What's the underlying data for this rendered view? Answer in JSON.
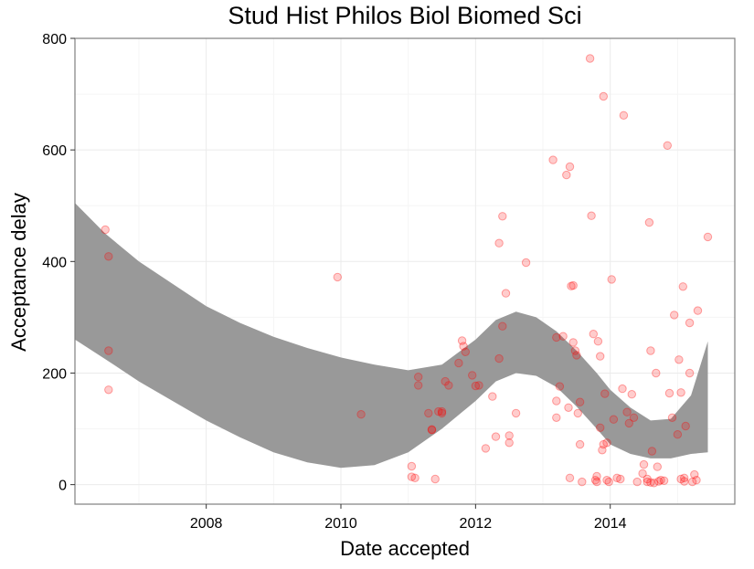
{
  "chart_data": {
    "type": "scatter",
    "title": "Stud Hist Philos Biol Biomed Sci",
    "xlabel": "Date accepted",
    "ylabel": "Acceptance delay",
    "xlim": [
      2006.05,
      2015.85
    ],
    "ylim": [
      -35,
      800
    ],
    "x_ticks": [
      2008,
      2010,
      2012,
      2014
    ],
    "x_tick_labels": [
      "2008",
      "2010",
      "2012",
      "2014"
    ],
    "y_ticks": [
      0,
      200,
      400,
      600,
      800
    ],
    "y_tick_labels": [
      "0",
      "200",
      "400",
      "600",
      "800"
    ],
    "grid": true,
    "point_color": "#ff0000",
    "band_color": "#999999",
    "points": [
      [
        2006.5,
        457
      ],
      [
        2006.55,
        409
      ],
      [
        2006.55,
        240
      ],
      [
        2006.55,
        170
      ],
      [
        2009.95,
        372
      ],
      [
        2010.3,
        126
      ],
      [
        2011.05,
        33
      ],
      [
        2011.05,
        14
      ],
      [
        2011.1,
        12
      ],
      [
        2011.15,
        193
      ],
      [
        2011.15,
        178
      ],
      [
        2011.3,
        128
      ],
      [
        2011.35,
        99
      ],
      [
        2011.35,
        98
      ],
      [
        2011.4,
        10
      ],
      [
        2011.45,
        131
      ],
      [
        2011.5,
        128
      ],
      [
        2011.5,
        131
      ],
      [
        2011.55,
        185
      ],
      [
        2011.6,
        178
      ],
      [
        2011.75,
        218
      ],
      [
        2011.8,
        258
      ],
      [
        2011.82,
        248
      ],
      [
        2011.85,
        238
      ],
      [
        2011.95,
        196
      ],
      [
        2012.0,
        177
      ],
      [
        2012.05,
        178
      ],
      [
        2012.15,
        65
      ],
      [
        2012.25,
        158
      ],
      [
        2012.3,
        86
      ],
      [
        2012.35,
        226
      ],
      [
        2012.35,
        433
      ],
      [
        2012.4,
        481
      ],
      [
        2012.4,
        284
      ],
      [
        2012.45,
        343
      ],
      [
        2012.5,
        88
      ],
      [
        2012.5,
        75
      ],
      [
        2012.6,
        128
      ],
      [
        2012.75,
        398
      ],
      [
        2013.15,
        582
      ],
      [
        2013.2,
        264
      ],
      [
        2013.2,
        150
      ],
      [
        2013.2,
        120
      ],
      [
        2013.25,
        176
      ],
      [
        2013.3,
        266
      ],
      [
        2013.35,
        555
      ],
      [
        2013.38,
        138
      ],
      [
        2013.4,
        570
      ],
      [
        2013.4,
        12
      ],
      [
        2013.42,
        356
      ],
      [
        2013.45,
        357
      ],
      [
        2013.45,
        255
      ],
      [
        2013.48,
        240
      ],
      [
        2013.5,
        232
      ],
      [
        2013.52,
        128
      ],
      [
        2013.55,
        148
      ],
      [
        2013.55,
        72
      ],
      [
        2013.58,
        5
      ],
      [
        2013.7,
        764
      ],
      [
        2013.72,
        482
      ],
      [
        2013.75,
        270
      ],
      [
        2013.78,
        8
      ],
      [
        2013.8,
        15
      ],
      [
        2013.82,
        257
      ],
      [
        2013.85,
        230
      ],
      [
        2013.85,
        102
      ],
      [
        2013.88,
        62
      ],
      [
        2013.9,
        696
      ],
      [
        2013.9,
        72
      ],
      [
        2013.92,
        163
      ],
      [
        2013.95,
        75
      ],
      [
        2013.98,
        5
      ],
      [
        2014.02,
        368
      ],
      [
        2014.05,
        117
      ],
      [
        2014.1,
        12
      ],
      [
        2014.18,
        172
      ],
      [
        2014.2,
        662
      ],
      [
        2014.25,
        130
      ],
      [
        2014.28,
        110
      ],
      [
        2014.32,
        162
      ],
      [
        2014.35,
        120
      ],
      [
        2014.4,
        5
      ],
      [
        2014.5,
        36
      ],
      [
        2014.55,
        10
      ],
      [
        2014.58,
        470
      ],
      [
        2014.6,
        240
      ],
      [
        2014.62,
        60
      ],
      [
        2014.68,
        200
      ],
      [
        2014.7,
        32
      ],
      [
        2014.75,
        8
      ],
      [
        2014.85,
        608
      ],
      [
        2014.88,
        164
      ],
      [
        2014.92,
        120
      ],
      [
        2014.95,
        304
      ],
      [
        2015.0,
        90
      ],
      [
        2015.02,
        224
      ],
      [
        2015.05,
        165
      ],
      [
        2015.08,
        355
      ],
      [
        2015.1,
        12
      ],
      [
        2015.12,
        105
      ],
      [
        2015.18,
        290
      ],
      [
        2015.18,
        200
      ],
      [
        2015.25,
        18
      ],
      [
        2015.3,
        312
      ],
      [
        2015.45,
        444
      ],
      [
        2014.55,
        5
      ],
      [
        2014.6,
        4
      ],
      [
        2014.65,
        3
      ],
      [
        2014.72,
        6
      ],
      [
        2014.8,
        7
      ],
      [
        2015.05,
        10
      ],
      [
        2015.1,
        6
      ],
      [
        2015.22,
        5
      ],
      [
        2015.28,
        8
      ],
      [
        2013.95,
        8
      ],
      [
        2013.8,
        5
      ],
      [
        2014.15,
        10
      ],
      [
        2014.48,
        20
      ]
    ],
    "smooth_band": {
      "x": [
        2006.05,
        2006.5,
        2007.0,
        2007.5,
        2008.0,
        2008.5,
        2009.0,
        2009.5,
        2010.0,
        2010.5,
        2011.0,
        2011.5,
        2012.0,
        2012.3,
        2012.6,
        2012.9,
        2013.2,
        2013.5,
        2013.8,
        2014.0,
        2014.3,
        2014.6,
        2014.9,
        2015.2,
        2015.45
      ],
      "upper": [
        505,
        450,
        400,
        360,
        320,
        290,
        265,
        245,
        228,
        215,
        205,
        215,
        260,
        295,
        310,
        300,
        275,
        240,
        200,
        170,
        138,
        115,
        118,
        160,
        257
      ],
      "lower": [
        260,
        225,
        185,
        150,
        115,
        85,
        58,
        40,
        30,
        35,
        58,
        100,
        150,
        185,
        200,
        195,
        175,
        140,
        100,
        72,
        55,
        47,
        47,
        55,
        58
      ]
    }
  }
}
